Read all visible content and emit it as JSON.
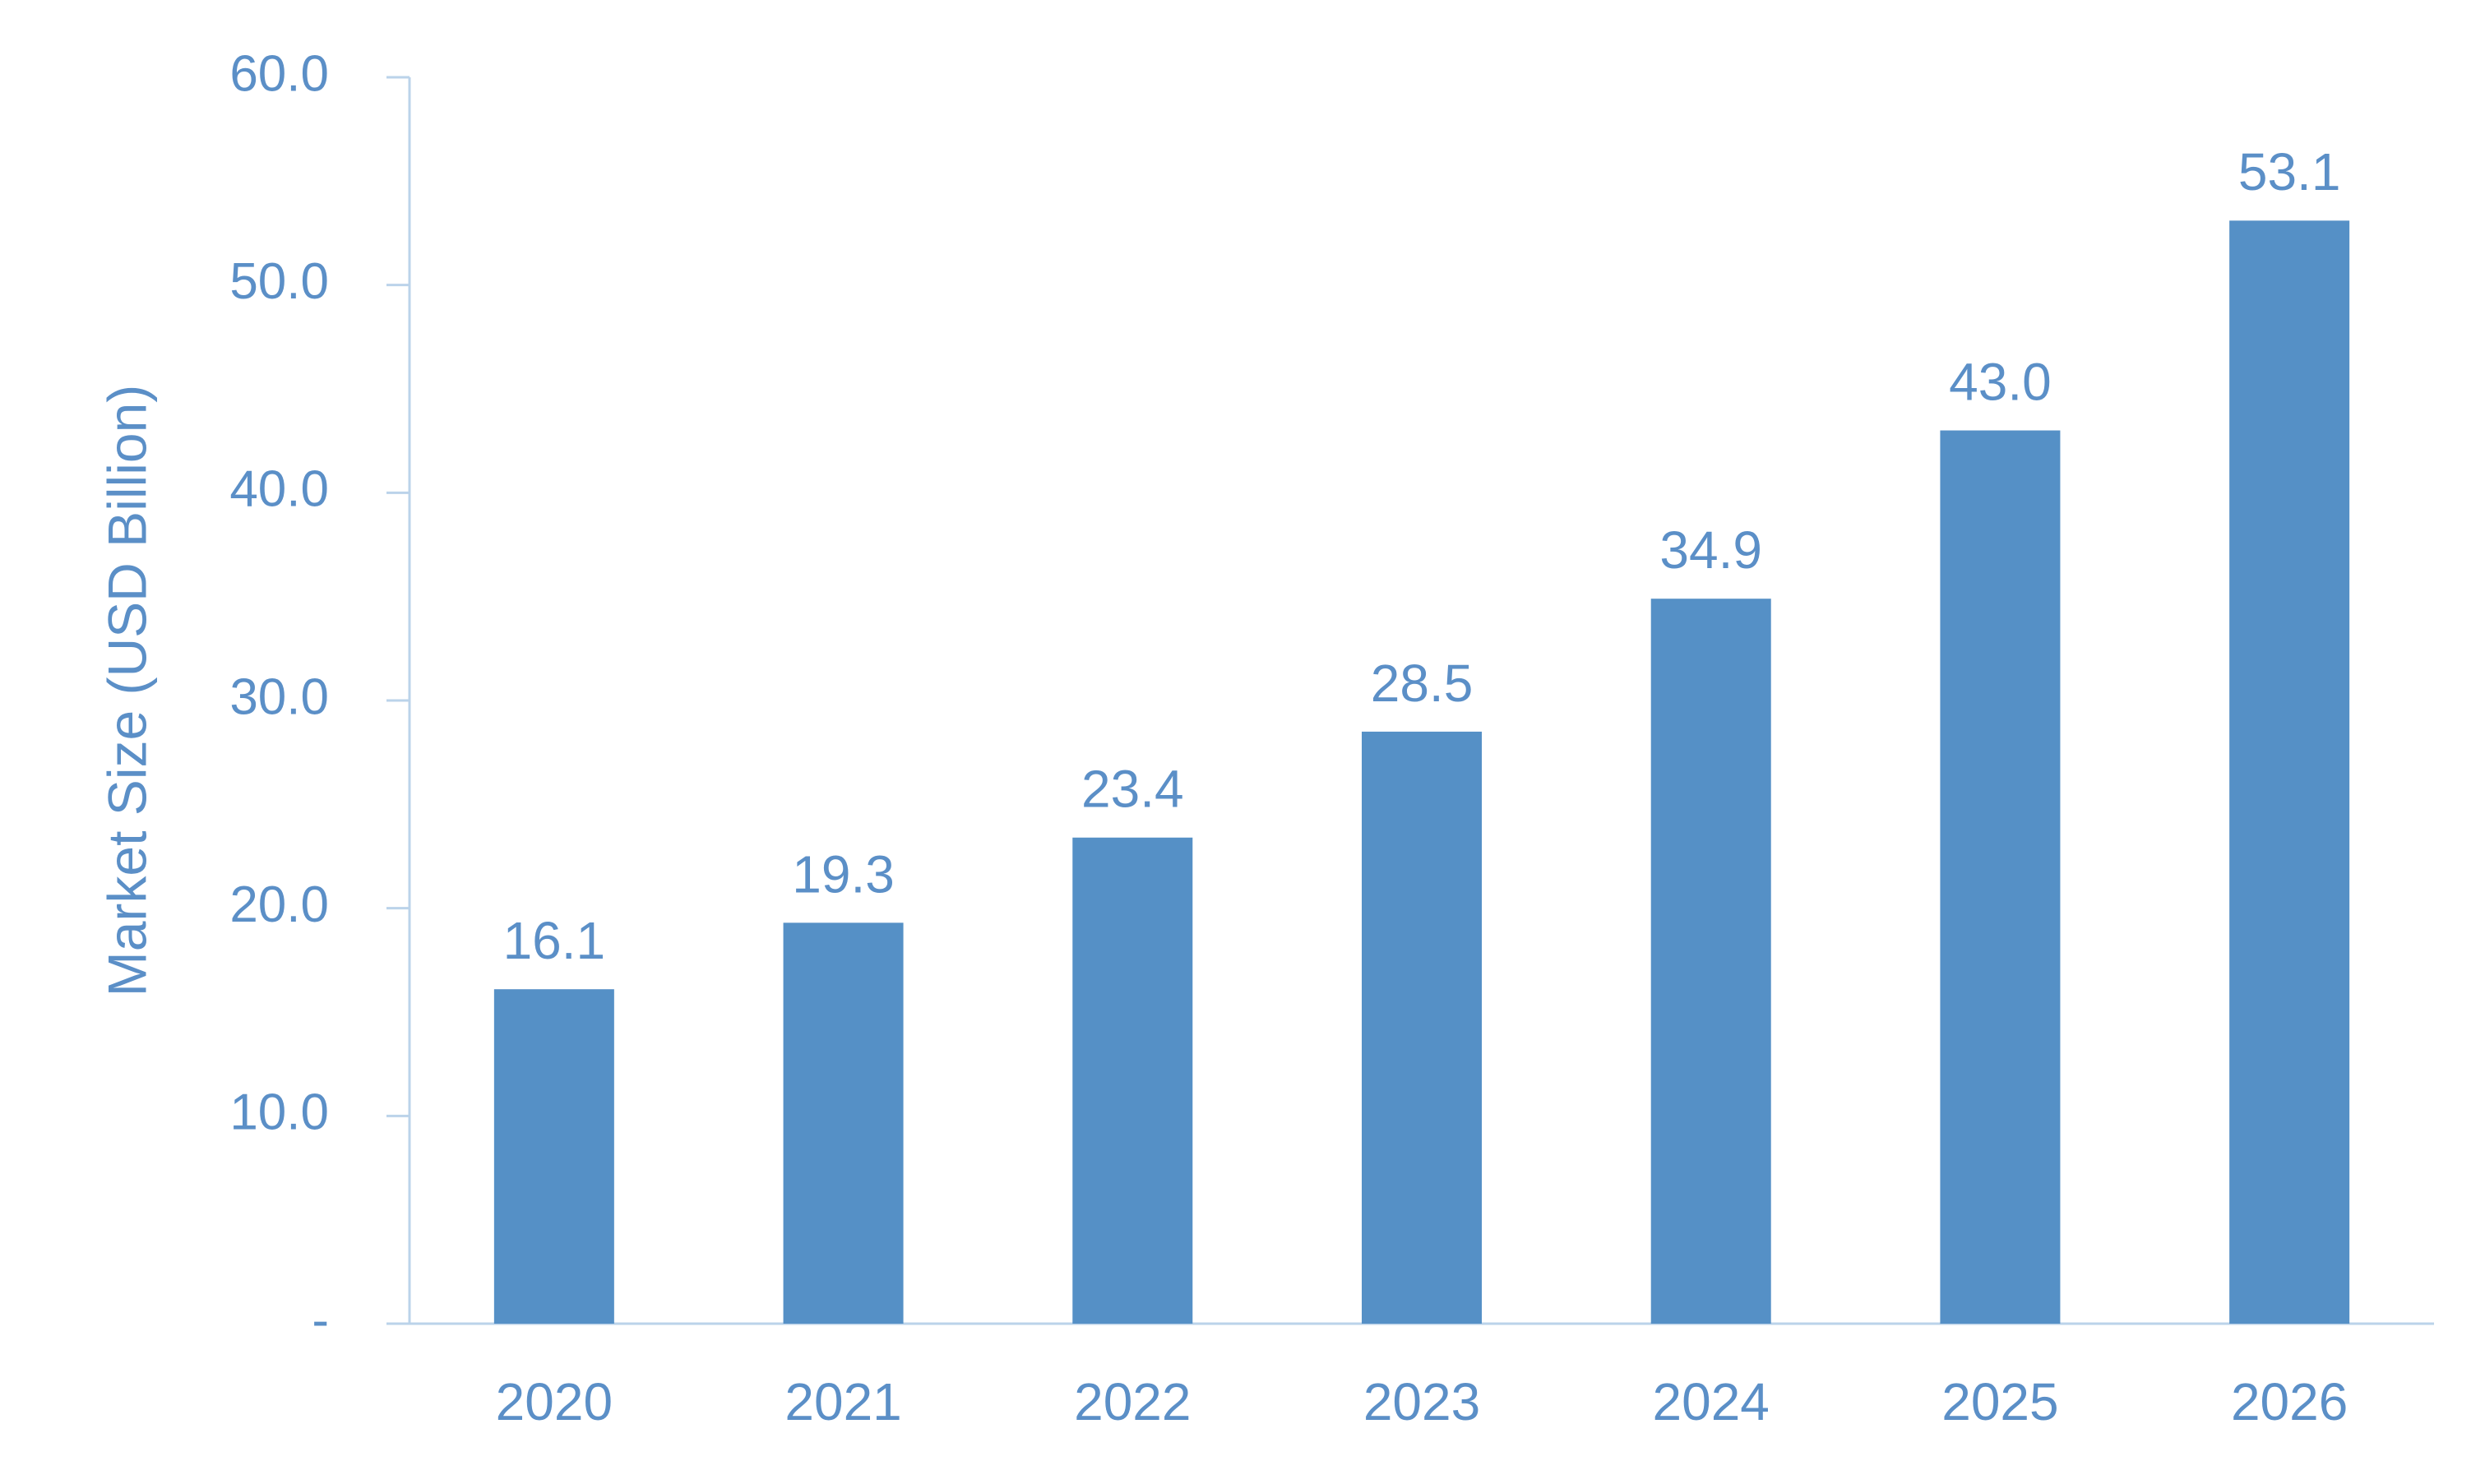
{
  "chart_data": {
    "type": "bar",
    "title": "",
    "xlabel": "",
    "ylabel": "Market Size (USD Billion)",
    "categories": [
      "2020",
      "2021",
      "2022",
      "2023",
      "2024",
      "2025",
      "2026"
    ],
    "values": [
      16.1,
      19.3,
      23.4,
      28.5,
      34.9,
      43.0,
      53.1
    ],
    "value_labels": [
      "16.1",
      "19.3",
      "23.4",
      "28.5",
      "34.9",
      "43.0",
      "53.1"
    ],
    "ylim": [
      0,
      60
    ],
    "yticks": [
      0,
      10,
      20,
      30,
      40,
      50,
      60
    ],
    "ytick_labels": [
      "-",
      "10.0",
      "20.0",
      "30.0",
      "40.0",
      "50.0",
      "60.0"
    ],
    "grid": false,
    "legend": "none",
    "colors": {
      "bar": "#5590C6",
      "text": "#5B8FC7",
      "axis": "#BBD3EA"
    }
  }
}
